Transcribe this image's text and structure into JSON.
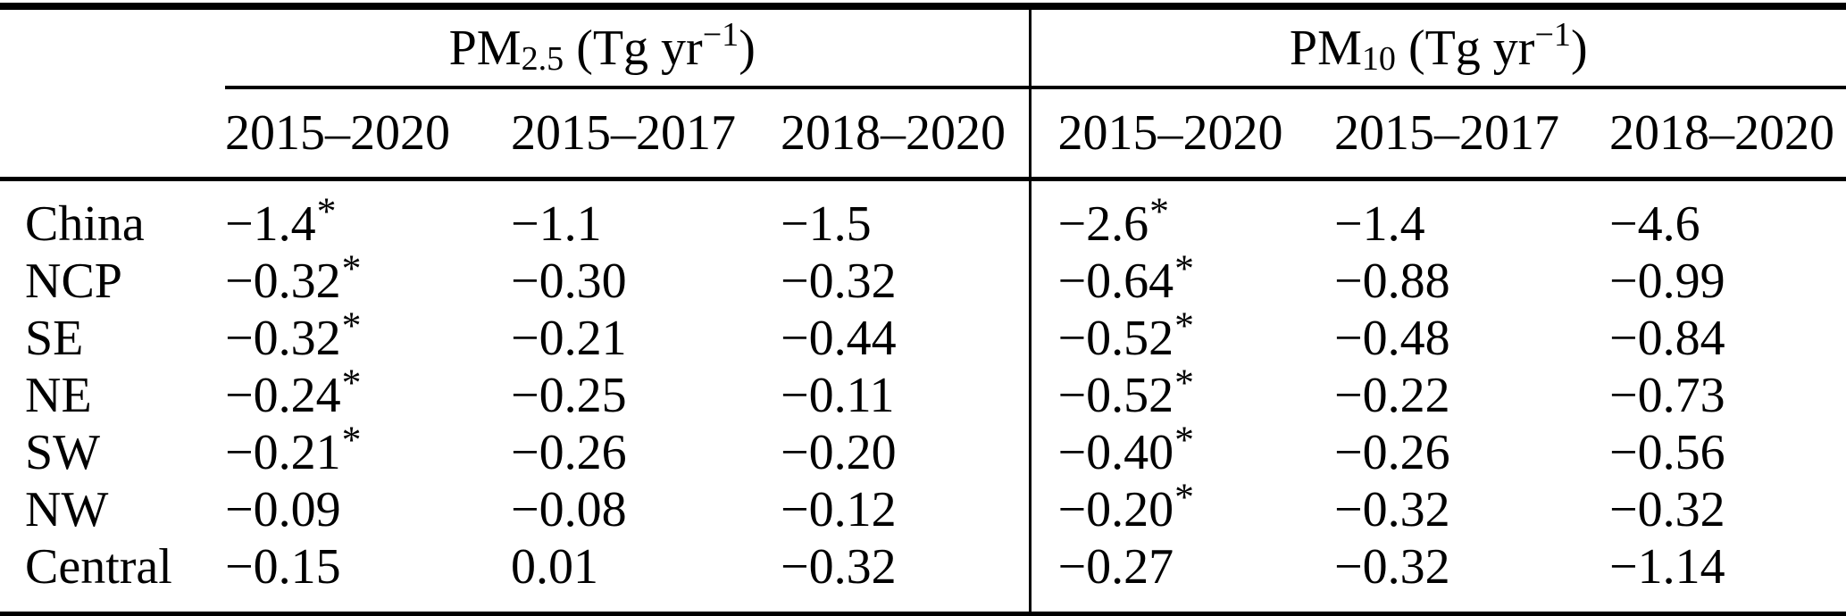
{
  "table": {
    "columns": {
      "group1": {
        "base": "PM",
        "sub": "2.5",
        "unit_open": " (Tg yr",
        "exp": "−1",
        "close": ")"
      },
      "group2": {
        "base": "PM",
        "sub": "10",
        "unit_open": " (Tg yr",
        "exp": "−1",
        "close": ")"
      },
      "periods": [
        "2015–2020",
        "2015–2017",
        "2018–2020"
      ]
    },
    "rows": [
      {
        "region": "China",
        "pm25": [
          "−1.4*",
          "−1.1",
          "−1.5"
        ],
        "pm10": [
          "−2.6*",
          "−1.4",
          "−4.6"
        ]
      },
      {
        "region": "NCP",
        "pm25": [
          "−0.32*",
          "−0.30",
          "−0.32"
        ],
        "pm10": [
          "−0.64*",
          "−0.88",
          "−0.99"
        ]
      },
      {
        "region": "SE",
        "pm25": [
          "−0.32*",
          "−0.21",
          "−0.44"
        ],
        "pm10": [
          "−0.52*",
          "−0.48",
          "−0.84"
        ]
      },
      {
        "region": "NE",
        "pm25": [
          "−0.24*",
          "−0.25",
          "−0.11"
        ],
        "pm10": [
          "−0.52*",
          "−0.22",
          "−0.73"
        ]
      },
      {
        "region": "SW",
        "pm25": [
          "−0.21*",
          "−0.26",
          "−0.20"
        ],
        "pm10": [
          "−0.40*",
          "−0.26",
          "−0.56"
        ]
      },
      {
        "region": "NW",
        "pm25": [
          "−0.09",
          "−0.08",
          "−0.12"
        ],
        "pm10": [
          "−0.20*",
          "−0.32",
          "−0.32"
        ]
      },
      {
        "region": "Central",
        "pm25": [
          "−0.15",
          "0.01",
          "−0.32"
        ],
        "pm10": [
          "−0.27",
          "−0.32",
          "−1.14"
        ]
      }
    ]
  }
}
